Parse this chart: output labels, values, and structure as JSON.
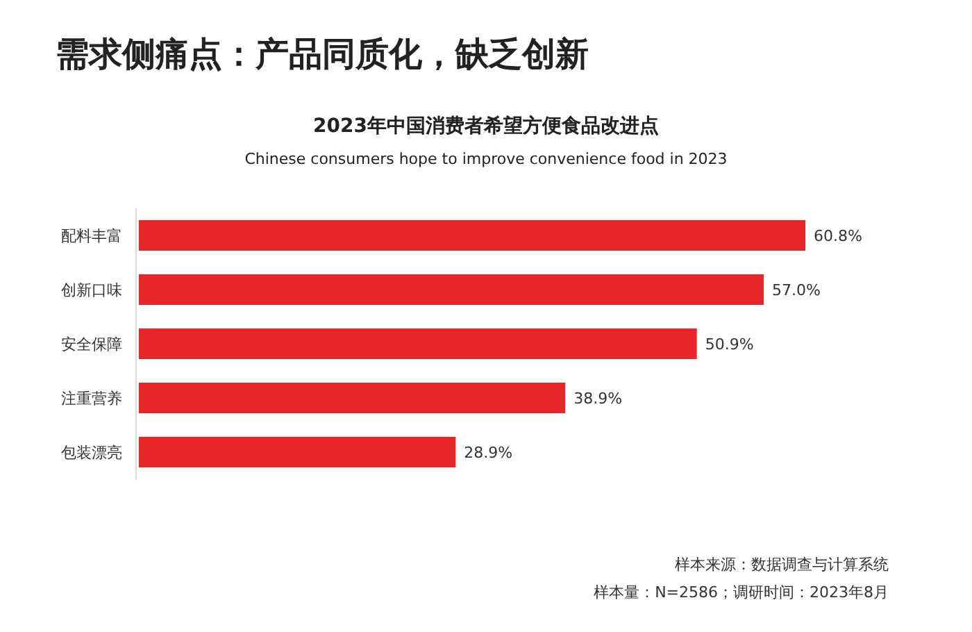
{
  "chart_data": {
    "type": "bar",
    "orientation": "horizontal",
    "title": "2023年中国消费者希望方便食品改进点",
    "subtitle": "Chinese consumers hope to improve convenience food in 2023",
    "categories": [
      "配料丰富",
      "创新口味",
      "安全保障",
      "注重营养",
      "包装漂亮"
    ],
    "values": [
      60.8,
      57.0,
      50.9,
      38.9,
      28.9
    ],
    "value_labels": [
      "60.8%",
      "57.0%",
      "50.9%",
      "38.9%",
      "28.9%"
    ],
    "color": "#e8262a",
    "annotations": [
      "需求侧痛点：产品同质化，缺乏创新",
      "样本来源：数据调查与计算系统",
      "样本量：N=2586；调研时间：2023年8月"
    ]
  }
}
